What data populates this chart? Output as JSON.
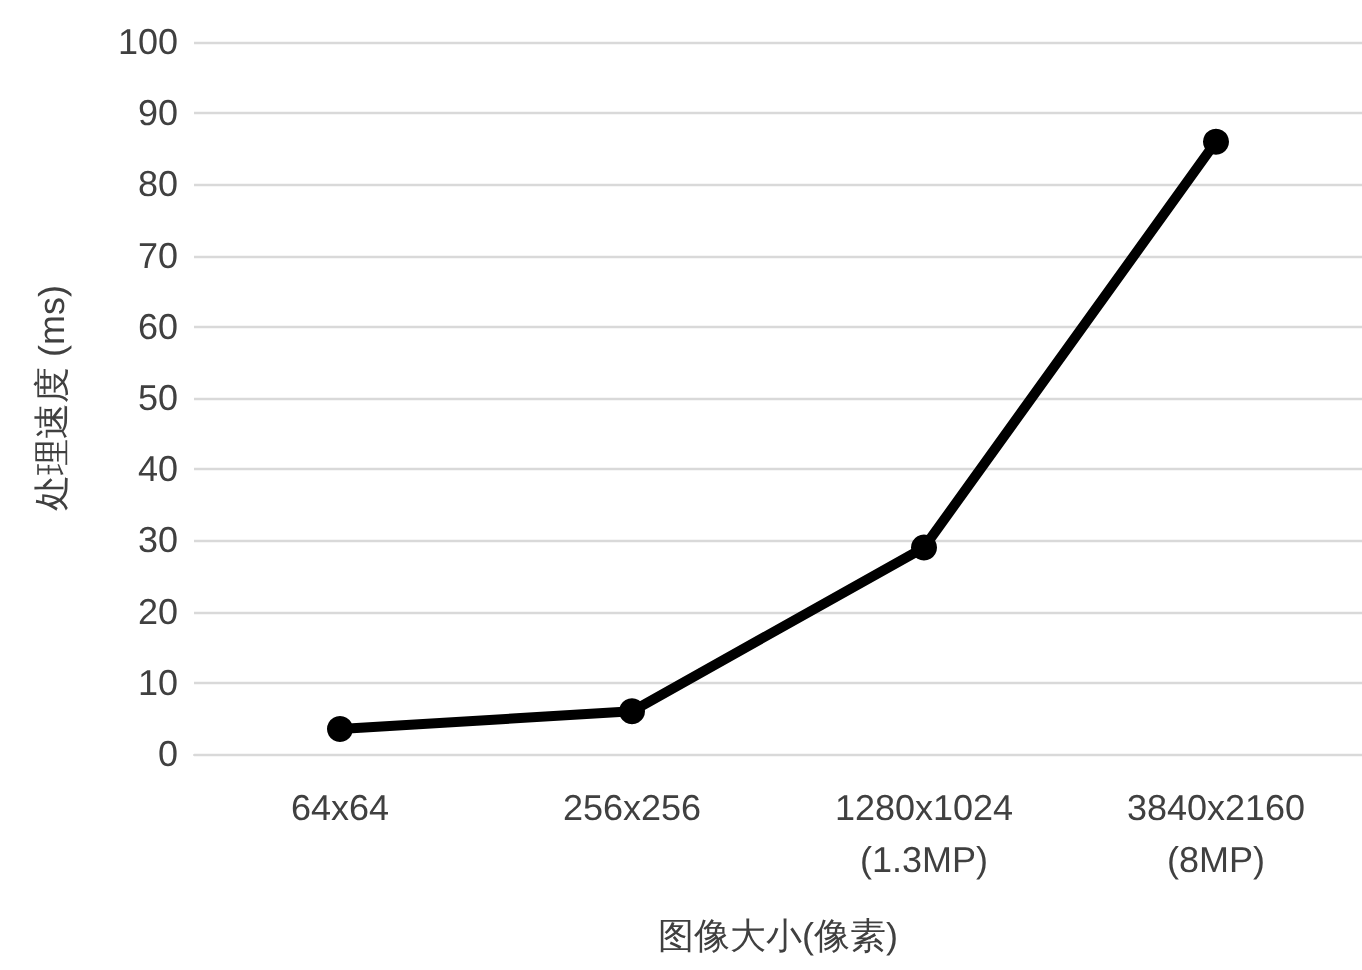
{
  "chart_data": {
    "type": "line",
    "xlabel": "图像大小(像素)",
    "ylabel": "处理速度 (ms)",
    "categories": [
      "64x64",
      "256x256",
      "1280x1024\n(1.3MP)",
      "3840x2160\n(8MP)"
    ],
    "series": [
      {
        "color": "#000000",
        "values": [
          3.5,
          6,
          29,
          86
        ]
      }
    ],
    "ylim": [
      0,
      100
    ],
    "yticks": [
      0,
      10,
      20,
      30,
      40,
      50,
      60,
      70,
      80,
      90,
      100
    ],
    "grid": "y",
    "marker": "circle",
    "line_style": "solid"
  }
}
